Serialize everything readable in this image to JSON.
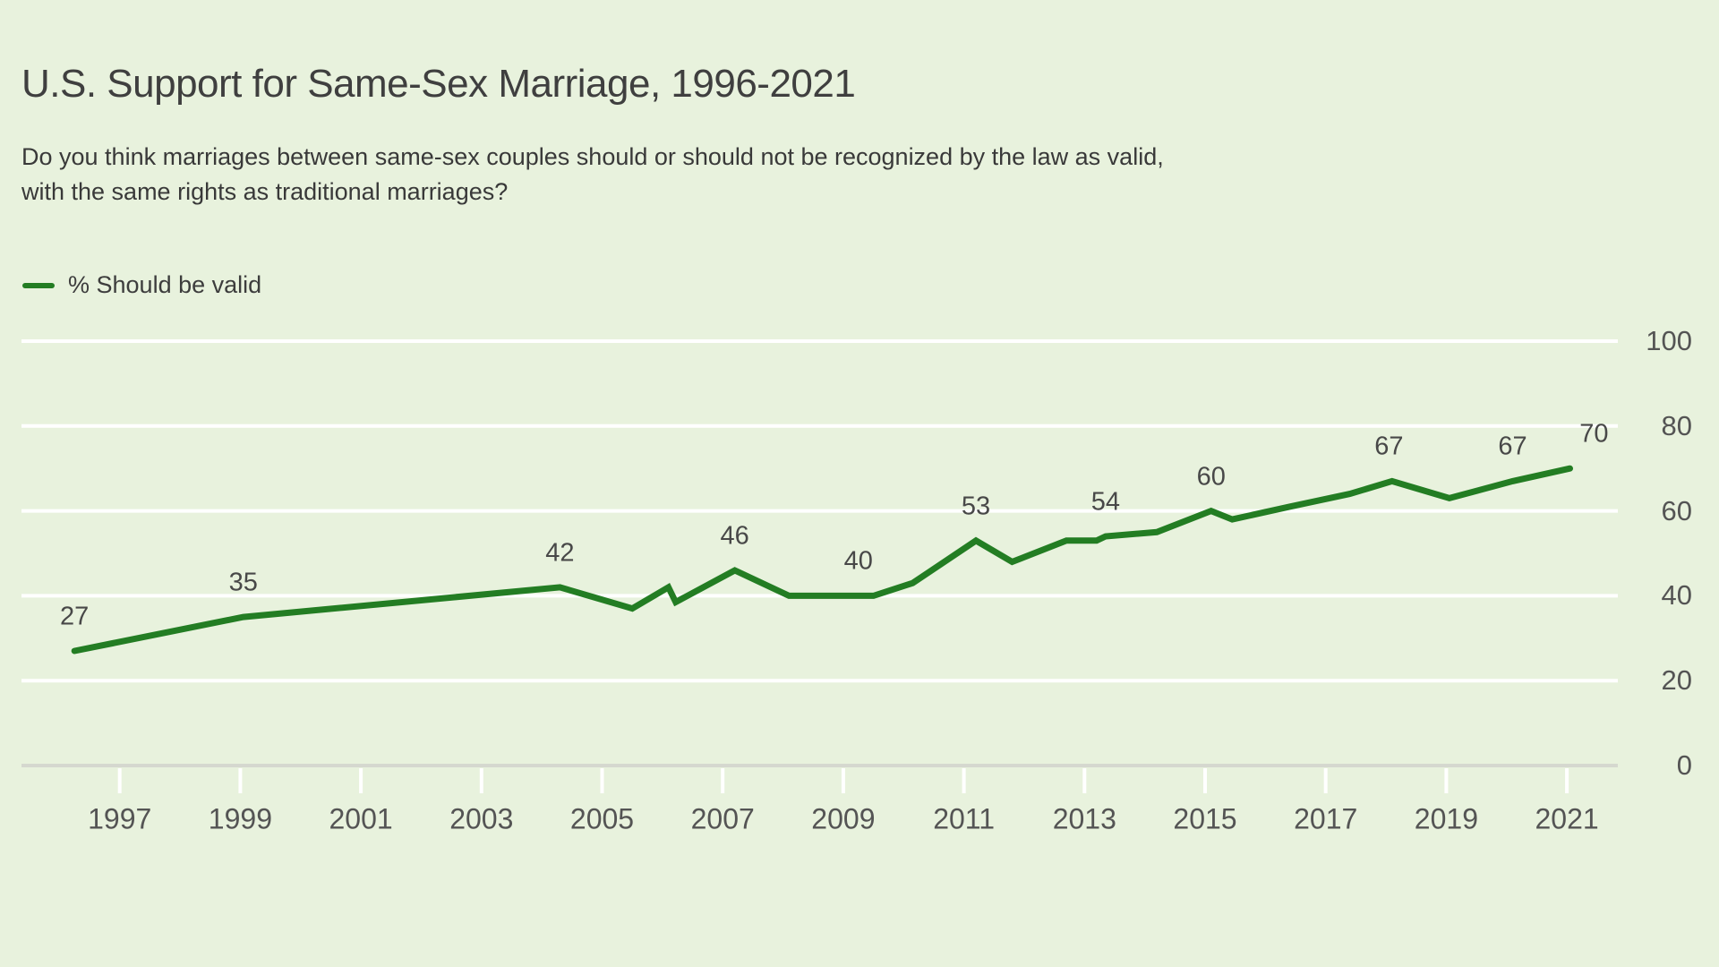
{
  "header": {
    "title": "U.S. Support for Same-Sex Marriage, 1996-2021",
    "subtitle_line1": "Do you think marriages between same-sex couples should or should not be recognized by the law as valid,",
    "subtitle_line2": "with the same rights as traditional marriages?"
  },
  "legend": {
    "label": "% Should be valid"
  },
  "colors": {
    "background": "#e8f2dd",
    "line": "#237d23",
    "gridline": "#ffffff",
    "axis_line": "#d5d8cf",
    "title_text": "#3f3f3f",
    "subtitle_text": "#393939",
    "data_label_text": "#484848",
    "axis_label_text": "#545454"
  },
  "chart_data": {
    "type": "line",
    "title": "U.S. Support for Same-Sex Marriage, 1996-2021",
    "question": "Do you think marriages between same-sex couples should or should not be recognized by the law as valid, with the same rights as traditional marriages?",
    "xlabel": "",
    "ylabel": "",
    "ylim": [
      0,
      100
    ],
    "xlim": [
      1995.4,
      2021.7
    ],
    "grid": "horizontal-white-gridlines",
    "legend_position": "top-left",
    "y_ticks": [
      100,
      80,
      60,
      40,
      20,
      0
    ],
    "x_ticks": [
      1997,
      1999,
      2001,
      2003,
      2005,
      2007,
      2009,
      2011,
      2013,
      2015,
      2017,
      2019,
      2021
    ],
    "series": [
      {
        "name": "% Should be valid",
        "note": "polyline vertices as [year, percent]; small zigzag at 2006 is the trend-break mark drawn in the source chart",
        "points": [
          [
            1996.25,
            27
          ],
          [
            1999.05,
            35
          ],
          [
            2004.3,
            42
          ],
          [
            2005.5,
            37
          ],
          [
            2006.1,
            42
          ],
          [
            2006.22,
            38.5
          ],
          [
            2007.2,
            46
          ],
          [
            2008.1,
            40
          ],
          [
            2009.5,
            40
          ],
          [
            2010.15,
            43
          ],
          [
            2011.2,
            53
          ],
          [
            2011.8,
            48
          ],
          [
            2012.7,
            53
          ],
          [
            2013.2,
            53
          ],
          [
            2013.35,
            54
          ],
          [
            2014.2,
            55
          ],
          [
            2015.1,
            60
          ],
          [
            2015.45,
            58
          ],
          [
            2016.4,
            61
          ],
          [
            2017.4,
            64
          ],
          [
            2018.1,
            67
          ],
          [
            2019.05,
            63
          ],
          [
            2020.1,
            67
          ],
          [
            2021.05,
            70
          ]
        ]
      }
    ],
    "point_labels": [
      {
        "text": "27",
        "year": 1996.25,
        "value": 27
      },
      {
        "text": "35",
        "year": 1999.05,
        "value": 35
      },
      {
        "text": "42",
        "year": 2004.3,
        "value": 42
      },
      {
        "text": "46",
        "year": 2007.2,
        "value": 46
      },
      {
        "text": "40",
        "year": 2009.25,
        "value": 40
      },
      {
        "text": "53",
        "year": 2011.2,
        "value": 53
      },
      {
        "text": "54",
        "year": 2013.35,
        "value": 54
      },
      {
        "text": "60",
        "year": 2015.1,
        "value": 60
      },
      {
        "text": "67",
        "year": 2018.05,
        "value": 67
      },
      {
        "text": "67",
        "year": 2020.1,
        "value": 67
      },
      {
        "text": "70",
        "year": 2021.45,
        "value": 70
      }
    ]
  }
}
